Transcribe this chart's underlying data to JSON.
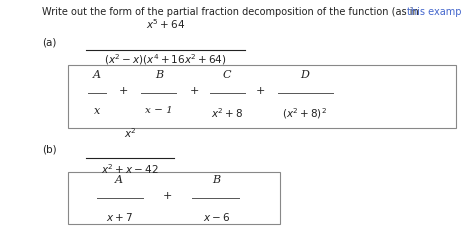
{
  "bg_color": "#f0f0e8",
  "white_bg": "#ffffff",
  "yellow_strip_color": "#e8e8c8",
  "text_color": "#222222",
  "link_color": "#4466cc",
  "header": "Write out the form of the partial fraction decomposition of the function (as in ",
  "header_link": "this examp",
  "label_a": "(a)",
  "label_b": "(b)",
  "box_edge_color": "#aaaaaa",
  "fraction_line_color": "#555555"
}
